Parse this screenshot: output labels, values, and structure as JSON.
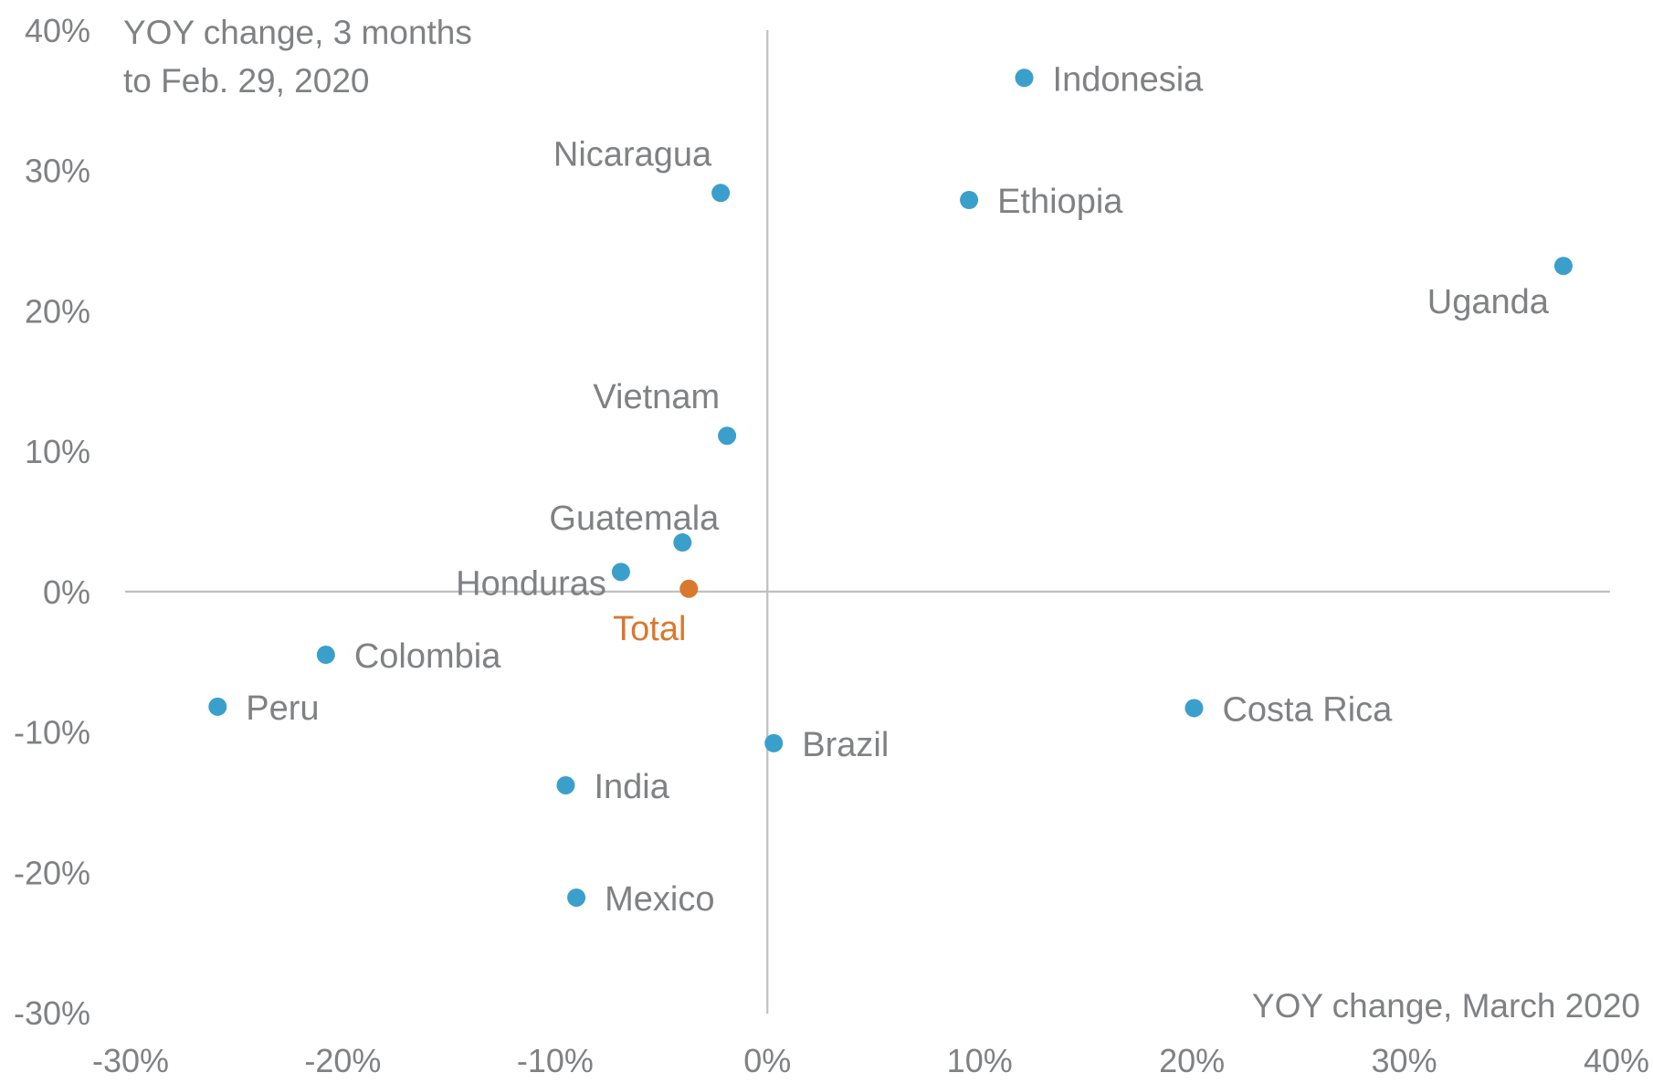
{
  "chart_data": {
    "type": "scatter",
    "title": "",
    "xlabel": "YOY change, March 2020",
    "ylabel_lines": [
      "YOY change, 3 months",
      "to Feb. 29, 2020"
    ],
    "xlim": [
      -30,
      40
    ],
    "ylim": [
      -30,
      40
    ],
    "x_ticks": [
      -30,
      -20,
      -10,
      0,
      10,
      20,
      30,
      40
    ],
    "y_ticks": [
      -30,
      -20,
      -10,
      0,
      10,
      20,
      30,
      40
    ],
    "x_tick_labels": [
      "-30%",
      "-20%",
      "-10%",
      "0%",
      "10%",
      "20%",
      "30%",
      "40%"
    ],
    "y_tick_labels": [
      "-30%",
      "-20%",
      "-10%",
      "0%",
      "10%",
      "20%",
      "30%",
      "40%"
    ],
    "grid": false,
    "colors": {
      "country": "#3b9fcc",
      "total": "#d9782f",
      "text": "#7f8183",
      "axis": "#bfbfbf"
    },
    "points": [
      {
        "label": "Indonesia",
        "x": 12.1,
        "y": 36.6,
        "kind": "country"
      },
      {
        "label": "Nicaragua",
        "x": -2.2,
        "y": 28.4,
        "kind": "country"
      },
      {
        "label": "Ethiopia",
        "x": 9.5,
        "y": 27.9,
        "kind": "country"
      },
      {
        "label": "Uganda",
        "x": 37.5,
        "y": 23.2,
        "kind": "country"
      },
      {
        "label": "Vietnam",
        "x": -1.9,
        "y": 11.1,
        "kind": "country"
      },
      {
        "label": "Guatemala",
        "x": -4.0,
        "y": 3.5,
        "kind": "country"
      },
      {
        "label": "Honduras",
        "x": -6.9,
        "y": 1.4,
        "kind": "country"
      },
      {
        "label": "Total",
        "x": -3.7,
        "y": 0.2,
        "kind": "total"
      },
      {
        "label": "Colombia",
        "x": -20.8,
        "y": -4.5,
        "kind": "country"
      },
      {
        "label": "Peru",
        "x": -25.9,
        "y": -8.2,
        "kind": "country"
      },
      {
        "label": "Costa Rica",
        "x": 20.1,
        "y": -8.3,
        "kind": "country"
      },
      {
        "label": "Brazil",
        "x": 0.3,
        "y": -10.8,
        "kind": "country"
      },
      {
        "label": "India",
        "x": -9.5,
        "y": -13.8,
        "kind": "country"
      },
      {
        "label": "Mexico",
        "x": -9.0,
        "y": -21.8,
        "kind": "country"
      }
    ]
  }
}
